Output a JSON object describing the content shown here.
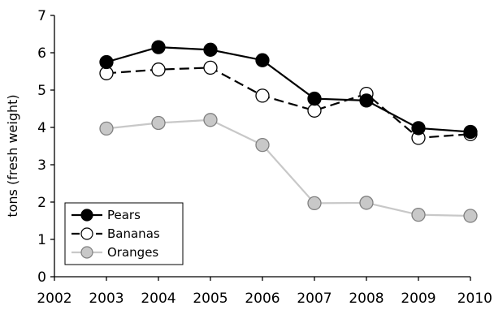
{
  "chart_data": {
    "type": "line",
    "title": "",
    "xlabel": "",
    "ylabel": "tons (fresh weight)",
    "xlim": [
      2002,
      2010
    ],
    "ylim": [
      0,
      7
    ],
    "x_ticks": [
      "2002",
      "2003",
      "2004",
      "2005",
      "2006",
      "2007",
      "2008",
      "2009",
      "2010"
    ],
    "y_ticks": [
      "0",
      "1",
      "2",
      "3",
      "4",
      "5",
      "6",
      "7"
    ],
    "grid": false,
    "legend_position": "bottom-left",
    "x": [
      2003,
      2004,
      2005,
      2006,
      2007,
      2008,
      2009,
      2010
    ],
    "series": [
      {
        "name": "Pears",
        "values": [
          5.75,
          6.15,
          6.08,
          5.8,
          4.77,
          4.72,
          3.98,
          3.88
        ],
        "line_color": "#000000",
        "line_style": "solid",
        "marker_fill": "#000000",
        "marker_stroke": "#000000"
      },
      {
        "name": "Bananas",
        "values": [
          5.45,
          5.55,
          5.6,
          4.85,
          4.45,
          4.9,
          3.72,
          3.82
        ],
        "line_color": "#000000",
        "line_style": "dashed",
        "marker_fill": "#ffffff",
        "marker_stroke": "#000000"
      },
      {
        "name": "Oranges",
        "values": [
          3.97,
          4.12,
          4.2,
          3.53,
          1.97,
          1.98,
          1.66,
          1.63
        ],
        "line_color": "#c8c8c8",
        "line_style": "solid",
        "marker_fill": "#c8c8c8",
        "marker_stroke": "#808080"
      }
    ]
  }
}
